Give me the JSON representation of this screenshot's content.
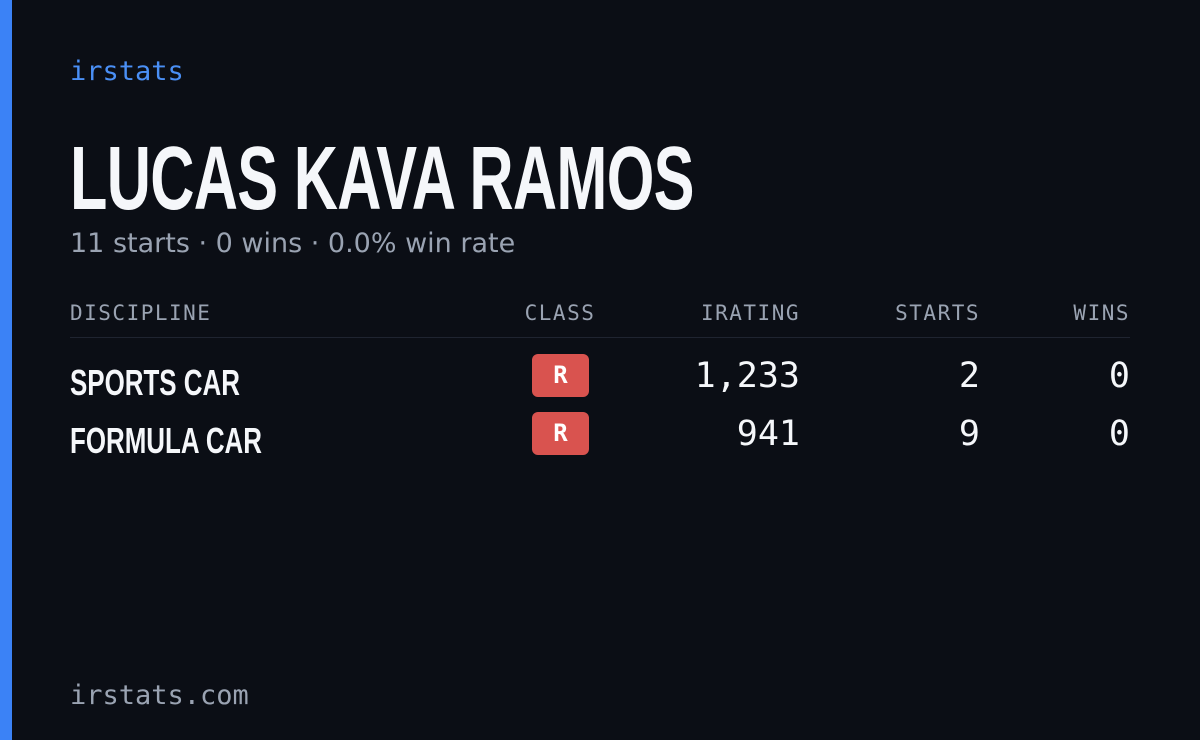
{
  "brand": "irstats",
  "driver": {
    "name": "LUCAS KAVA RAMOS",
    "summary": "11 starts · 0 wins · 0.0% win rate"
  },
  "table": {
    "headers": [
      "DISCIPLINE",
      "CLASS",
      "IRATING",
      "STARTS",
      "WINS"
    ],
    "rows": [
      [
        "SPORTS CAR",
        "R",
        "1,233",
        "2",
        "0"
      ],
      [
        "FORMULA CAR",
        "R",
        "941",
        "9",
        "0"
      ]
    ]
  },
  "footer": "irstats.com"
}
